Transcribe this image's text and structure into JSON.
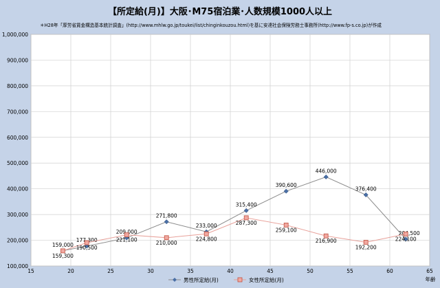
{
  "title": "【所定給(月)】大阪･M75宿泊業･人数規模1000人以上",
  "source": "＊H28年「厚労省賃金構造基本統計調査」(http://www.mhlw.go.jp/toukei/list/chinginkouzou.html)を基に安達社会保険労務士事務所(http://www.fp-s.co.jp)が作成",
  "chart_data": {
    "type": "line",
    "title": "【所定給(月)】大阪･M75宿泊業･人数規模1000人以上",
    "xlabel": "年齢",
    "ylabel": "",
    "xlim": [
      15,
      65
    ],
    "ylim": [
      100000,
      1000000
    ],
    "x_ticks": [
      15,
      20,
      25,
      30,
      35,
      40,
      45,
      50,
      55,
      60,
      65
    ],
    "y_ticks": [
      100000,
      200000,
      300000,
      400000,
      500000,
      600000,
      700000,
      800000,
      900000,
      1000000
    ],
    "x_tick_labels": [
      "15",
      "20",
      "25",
      "30",
      "35",
      "40",
      "45",
      "50",
      "55",
      "60",
      "65"
    ],
    "y_tick_labels": [
      "100,000",
      "200,000",
      "300,000",
      "400,000",
      "500,000",
      "600,000",
      "700,000",
      "800,000",
      "900,000",
      "1,000,000"
    ],
    "grid": true,
    "legend_position": "bottom",
    "series": [
      {
        "name": "男性所定給(月)",
        "color": "#4a6fa5",
        "marker": "diamond",
        "x": [
          19,
          22,
          27,
          32,
          37,
          42,
          47,
          52,
          57,
          62
        ],
        "y": [
          159300,
          177300,
          209000,
          271800,
          233000,
          315400,
          390600,
          446000,
          376400,
          204500
        ],
        "labels": [
          "159,300",
          "177,300",
          "209,000",
          "271,800",
          "233,000",
          "315,400",
          "390,600",
          "446,000",
          "376,400",
          "204,500"
        ]
      },
      {
        "name": "女性所定給(月)",
        "color": "#e07060",
        "marker": "square",
        "x": [
          19,
          22,
          27,
          32,
          37,
          42,
          47,
          52,
          57,
          62
        ],
        "y": [
          159000,
          190500,
          221100,
          210000,
          224800,
          287300,
          259100,
          216900,
          192200,
          224100
        ],
        "labels": [
          "159,000",
          "190,500",
          "221,100",
          "210,000",
          "224,800",
          "287,300",
          "259,100",
          "216,900",
          "192,200",
          "224,100"
        ]
      }
    ]
  }
}
